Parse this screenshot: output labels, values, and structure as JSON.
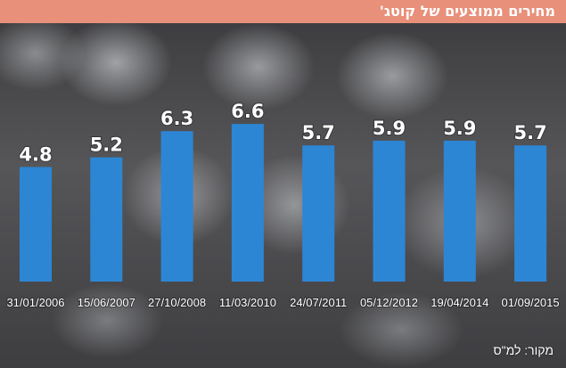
{
  "header": {
    "title": "מחירים ממוצעים של קוטג'",
    "color": "#e8907a"
  },
  "footer": {
    "source": "מקור: למ\"ס"
  },
  "chart_data": {
    "type": "bar",
    "title": "מחירים ממוצעים של קוטג'",
    "categories": [
      "31/01/2006",
      "15/06/2007",
      "27/10/2008",
      "11/03/2010",
      "24/07/2011",
      "05/12/2012",
      "19/04/2014",
      "01/09/2015"
    ],
    "values": [
      4.8,
      5.2,
      6.3,
      6.6,
      5.7,
      5.9,
      5.9,
      5.7
    ],
    "value_labels": [
      "4.8",
      "5.2",
      "6.3",
      "6.6",
      "5.7",
      "5.9",
      "5.9",
      "5.7"
    ],
    "xlabel": "",
    "ylabel": "",
    "ylim": [
      0,
      6.6
    ],
    "bar_color": "#2d86d4",
    "grid": false
  }
}
